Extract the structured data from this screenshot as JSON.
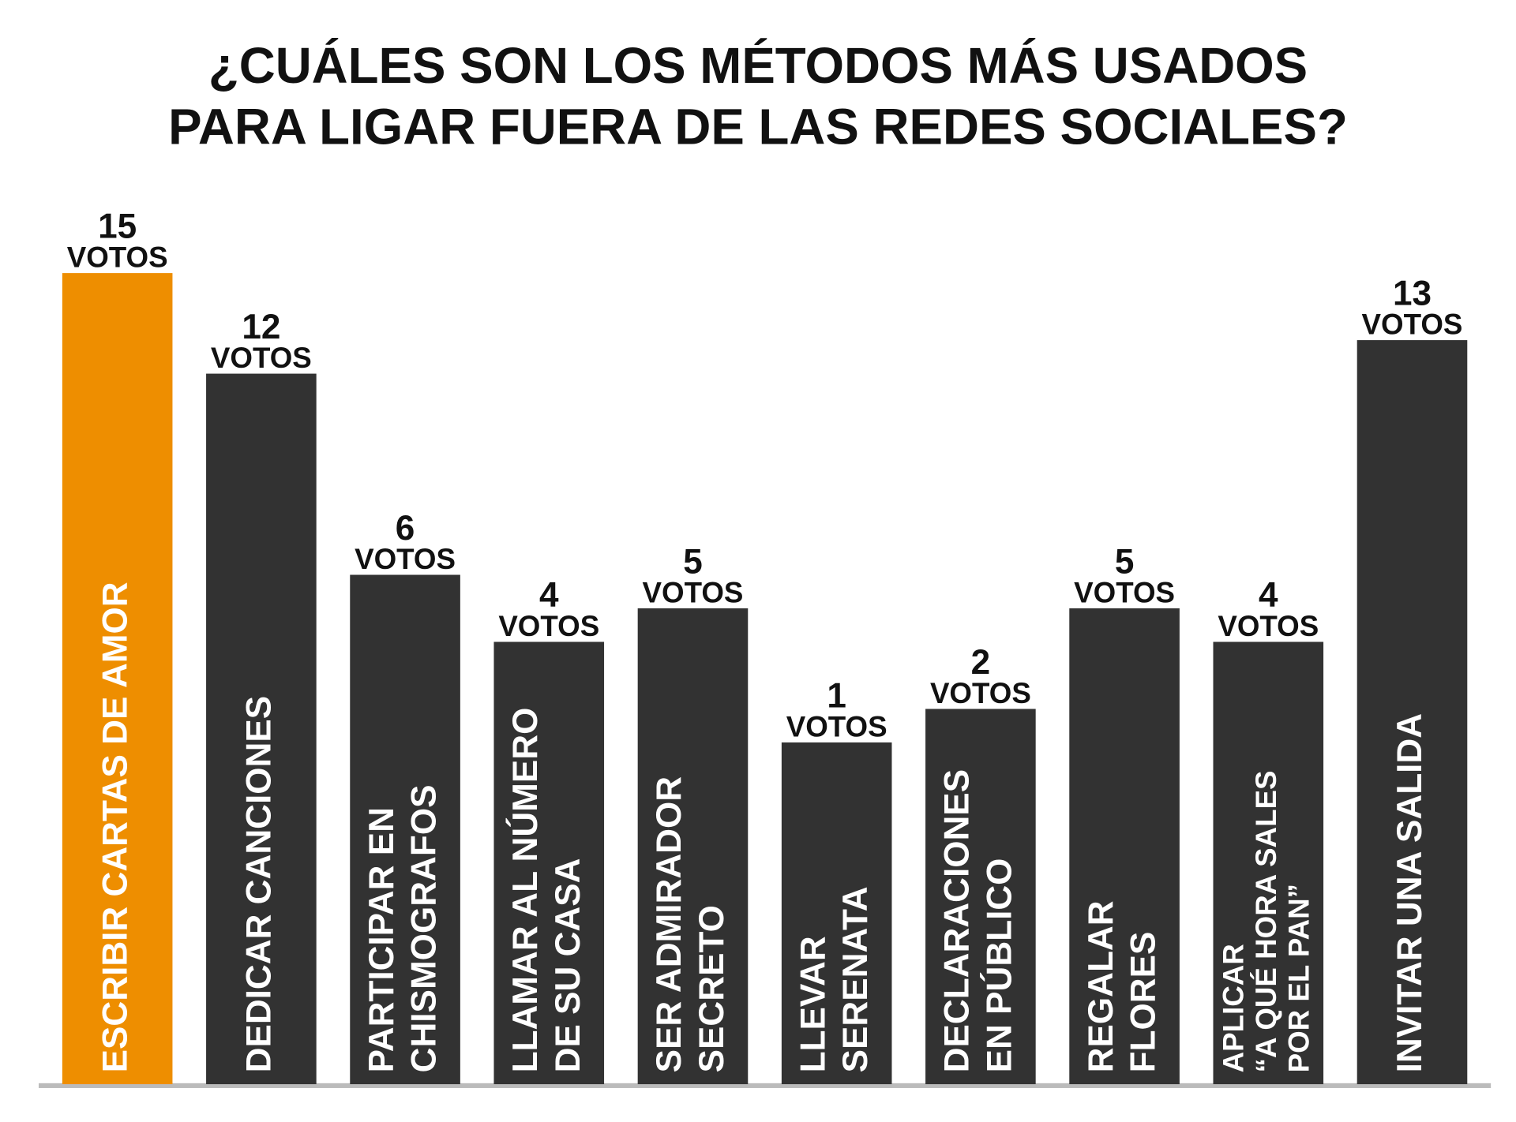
{
  "chart_data": {
    "type": "bar",
    "title": [
      "¿CUÁLES SON LOS MÉTODOS MÁS USADOS",
      "PARA LIGAR FUERA DE LAS REDES SOCIALES?"
    ],
    "categories": [
      [
        "ESCRIBIR CARTAS DE AMOR"
      ],
      [
        "DEDICAR CANCIONES"
      ],
      [
        "PARTICIPAR EN",
        "CHISMOGRAFOS"
      ],
      [
        "LLAMAR AL NÚMERO",
        "DE SU CASA"
      ],
      [
        "SER ADMIRADOR",
        "SECRETO"
      ],
      [
        "LLEVAR",
        "SERENATA"
      ],
      [
        "DECLARACIONES",
        "EN PÚBLICO"
      ],
      [
        "REGALAR",
        "FLORES"
      ],
      [
        "APLICAR",
        "“A QUÉ HORA SALES",
        "POR EL PAN”"
      ],
      [
        "INVITAR UNA SALIDA"
      ]
    ],
    "values": [
      15,
      12,
      6,
      4,
      5,
      1,
      2,
      5,
      4,
      13
    ],
    "value_unit": "VOTOS",
    "colors": [
      "#ee8e00",
      "#323232",
      "#323232",
      "#323232",
      "#323232",
      "#323232",
      "#323232",
      "#323232",
      "#323232",
      "#323232"
    ]
  }
}
